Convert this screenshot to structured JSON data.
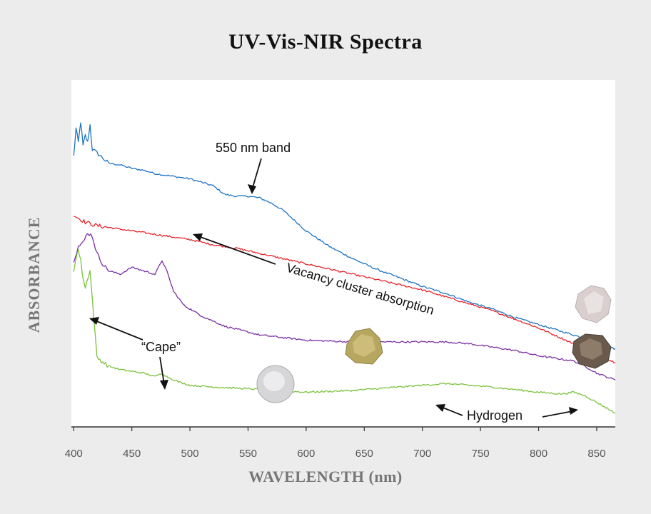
{
  "chart_data": {
    "type": "line",
    "title": "UV-Vis-NIR Spectra",
    "xlabel": "WAVELENGTH (nm)",
    "ylabel": "ABSORBANCE",
    "xlim": [
      398,
      866
    ],
    "ylim": [
      0,
      1
    ],
    "x_ticks": [
      400,
      450,
      500,
      550,
      600,
      650,
      700,
      750,
      800,
      850
    ],
    "grid": false,
    "series": [
      {
        "color": "#1f74c4",
        "points": [
          [
            400,
            0.78
          ],
          [
            402,
            0.86
          ],
          [
            404,
            0.82
          ],
          [
            406,
            0.88
          ],
          [
            408,
            0.81
          ],
          [
            410,
            0.84
          ],
          [
            412,
            0.82
          ],
          [
            414,
            0.87
          ],
          [
            416,
            0.8
          ],
          [
            420,
            0.79
          ],
          [
            430,
            0.76
          ],
          [
            440,
            0.755
          ],
          [
            450,
            0.745
          ],
          [
            460,
            0.74
          ],
          [
            470,
            0.73
          ],
          [
            480,
            0.725
          ],
          [
            490,
            0.72
          ],
          [
            500,
            0.715
          ],
          [
            510,
            0.705
          ],
          [
            520,
            0.695
          ],
          [
            530,
            0.67
          ],
          [
            540,
            0.665
          ],
          [
            550,
            0.665
          ],
          [
            560,
            0.66
          ],
          [
            570,
            0.645
          ],
          [
            580,
            0.625
          ],
          [
            590,
            0.595
          ],
          [
            600,
            0.565
          ],
          [
            620,
            0.52
          ],
          [
            640,
            0.485
          ],
          [
            660,
            0.455
          ],
          [
            680,
            0.43
          ],
          [
            700,
            0.405
          ],
          [
            720,
            0.385
          ],
          [
            740,
            0.36
          ],
          [
            760,
            0.34
          ],
          [
            780,
            0.315
          ],
          [
            800,
            0.295
          ],
          [
            820,
            0.275
          ],
          [
            840,
            0.255
          ],
          [
            866,
            0.225
          ]
        ]
      },
      {
        "color": "#e8232a",
        "points": [
          [
            400,
            0.61
          ],
          [
            410,
            0.59
          ],
          [
            420,
            0.58
          ],
          [
            440,
            0.57
          ],
          [
            460,
            0.56
          ],
          [
            480,
            0.55
          ],
          [
            500,
            0.54
          ],
          [
            520,
            0.525
          ],
          [
            540,
            0.515
          ],
          [
            560,
            0.5
          ],
          [
            580,
            0.485
          ],
          [
            600,
            0.47
          ],
          [
            620,
            0.455
          ],
          [
            640,
            0.44
          ],
          [
            660,
            0.425
          ],
          [
            680,
            0.41
          ],
          [
            700,
            0.395
          ],
          [
            720,
            0.375
          ],
          [
            740,
            0.355
          ],
          [
            760,
            0.335
          ],
          [
            780,
            0.31
          ],
          [
            800,
            0.285
          ],
          [
            820,
            0.255
          ],
          [
            840,
            0.225
          ],
          [
            866,
            0.185
          ]
        ]
      },
      {
        "color": "#7b2fa3",
        "points": [
          [
            400,
            0.48
          ],
          [
            404,
            0.52
          ],
          [
            408,
            0.53
          ],
          [
            412,
            0.56
          ],
          [
            416,
            0.55
          ],
          [
            420,
            0.5
          ],
          [
            425,
            0.47
          ],
          [
            430,
            0.45
          ],
          [
            440,
            0.44
          ],
          [
            450,
            0.46
          ],
          [
            460,
            0.45
          ],
          [
            470,
            0.44
          ],
          [
            476,
            0.48
          ],
          [
            480,
            0.45
          ],
          [
            486,
            0.39
          ],
          [
            495,
            0.35
          ],
          [
            510,
            0.32
          ],
          [
            530,
            0.29
          ],
          [
            560,
            0.265
          ],
          [
            600,
            0.25
          ],
          [
            640,
            0.245
          ],
          [
            680,
            0.245
          ],
          [
            720,
            0.245
          ],
          [
            740,
            0.24
          ],
          [
            760,
            0.23
          ],
          [
            780,
            0.22
          ],
          [
            800,
            0.205
          ],
          [
            820,
            0.195
          ],
          [
            830,
            0.19
          ],
          [
            840,
            0.175
          ],
          [
            850,
            0.155
          ],
          [
            866,
            0.135
          ]
        ]
      },
      {
        "color": "#7bc23e",
        "points": [
          [
            400,
            0.45
          ],
          [
            402,
            0.49
          ],
          [
            404,
            0.51
          ],
          [
            406,
            0.48
          ],
          [
            408,
            0.43
          ],
          [
            410,
            0.4
          ],
          [
            412,
            0.43
          ],
          [
            414,
            0.45
          ],
          [
            416,
            0.37
          ],
          [
            420,
            0.2
          ],
          [
            430,
            0.175
          ],
          [
            440,
            0.165
          ],
          [
            460,
            0.155
          ],
          [
            470,
            0.145
          ],
          [
            476,
            0.155
          ],
          [
            480,
            0.145
          ],
          [
            490,
            0.13
          ],
          [
            500,
            0.12
          ],
          [
            520,
            0.115
          ],
          [
            550,
            0.11
          ],
          [
            600,
            0.1
          ],
          [
            640,
            0.105
          ],
          [
            680,
            0.115
          ],
          [
            720,
            0.125
          ],
          [
            760,
            0.115
          ],
          [
            800,
            0.1
          ],
          [
            820,
            0.095
          ],
          [
            830,
            0.1
          ],
          [
            840,
            0.09
          ],
          [
            866,
            0.04
          ]
        ]
      }
    ],
    "annotations": [
      {
        "text": "550 nm band",
        "x": 550,
        "series": 0
      },
      {
        "text": "Vacancy cluster absorption",
        "x": 500,
        "series": 1
      },
      {
        "text": "“Cape”",
        "x": 415,
        "series": 3
      },
      {
        "text": "Hydrogen",
        "x": 710,
        "series": 3
      }
    ]
  }
}
